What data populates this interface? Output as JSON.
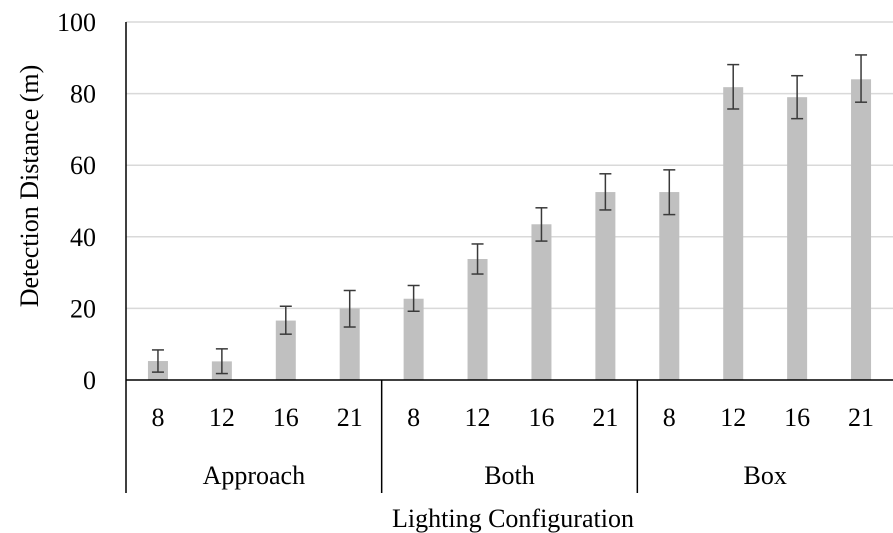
{
  "chart_data": {
    "type": "bar",
    "title": "",
    "xlabel": "Lighting Configuration",
    "ylabel": "Detection Distance (m)",
    "ylim": [
      0,
      100
    ],
    "yticks": [
      0,
      20,
      40,
      60,
      80,
      100
    ],
    "grid": true,
    "legend": "none",
    "bar_color": "#c0c0c0",
    "groups": [
      {
        "label": "Approach",
        "categories": [
          "8",
          "12",
          "16",
          "21"
        ]
      },
      {
        "label": "Both",
        "categories": [
          "8",
          "12",
          "16",
          "21"
        ]
      },
      {
        "label": "Box",
        "categories": [
          "8",
          "12",
          "16",
          "21"
        ]
      }
    ],
    "values": [
      5.3,
      5.2,
      16.6,
      20.0,
      22.7,
      33.8,
      43.5,
      52.5,
      52.5,
      81.8,
      79.0,
      84.0
    ],
    "error_low": [
      2.2,
      1.8,
      12.8,
      14.8,
      19.2,
      29.6,
      38.8,
      47.5,
      46.2,
      75.7,
      73.0,
      77.6
    ],
    "error_high": [
      8.4,
      8.7,
      20.6,
      25.0,
      26.4,
      38.0,
      48.1,
      57.6,
      58.7,
      88.1,
      85.0,
      90.8
    ]
  }
}
